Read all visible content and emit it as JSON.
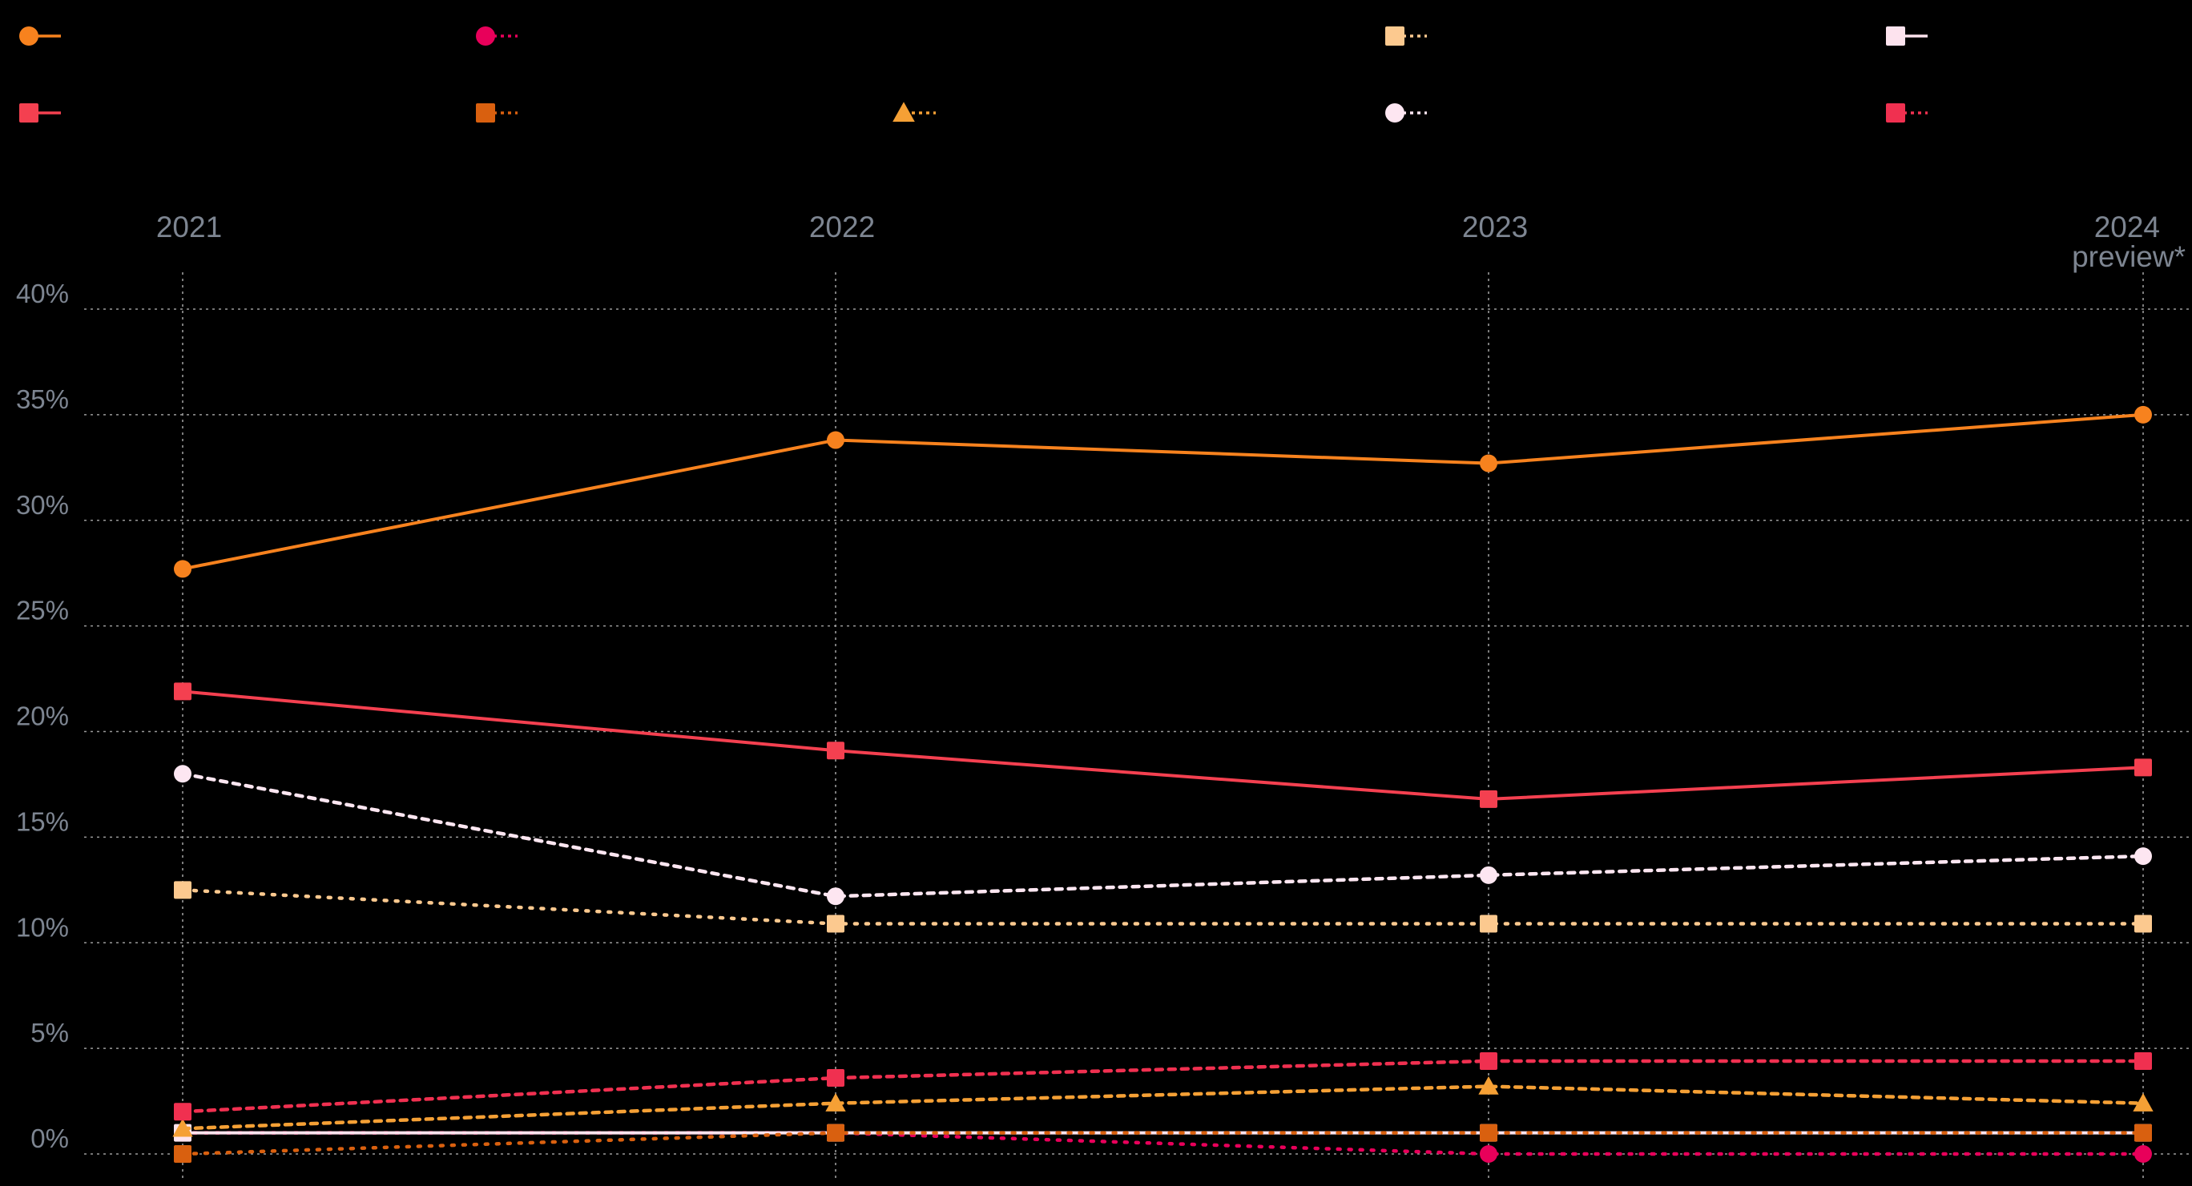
{
  "chart_data": {
    "type": "line",
    "title": "",
    "xlabel": "",
    "ylabel": "",
    "grid": true,
    "legend_position": "top",
    "x": [
      "2021",
      "2022",
      "2023",
      "2024"
    ],
    "x_sublabels": [
      "",
      "",
      "",
      "preview*"
    ],
    "y_ticks": [
      "0%",
      "5%",
      "10%",
      "15%",
      "20%",
      "25%",
      "30%",
      "35%",
      "40%"
    ],
    "ylim": [
      0,
      40
    ],
    "series": [
      {
        "color": "#f7821e",
        "marker": "circle",
        "line": "solid",
        "values": [
          27.7,
          33.8,
          32.7,
          35.0
        ]
      },
      {
        "color": "#e8005a",
        "marker": "circle",
        "line": "dotted",
        "values": [
          1.0,
          1.0,
          0.0,
          0.0
        ]
      },
      {
        "color": "#fcc98f",
        "marker": "square",
        "line": "dotted",
        "values": [
          12.5,
          10.9,
          10.9,
          10.9
        ]
      },
      {
        "color": "#fde3ee",
        "marker": "square",
        "line": "solid",
        "values": [
          1.0,
          1.0,
          1.0,
          1.0
        ]
      },
      {
        "color": "#f44050",
        "marker": "square",
        "line": "solid",
        "values": [
          21.9,
          19.1,
          16.8,
          18.3
        ]
      },
      {
        "color": "#d9600f",
        "marker": "square",
        "line": "dotted",
        "values": [
          0.0,
          1.0,
          1.0,
          1.0
        ]
      },
      {
        "color": "#f5a035",
        "marker": "triangle",
        "line": "dashed",
        "values": [
          1.2,
          2.4,
          3.2,
          2.4
        ]
      },
      {
        "color": "#fde6f1",
        "marker": "circle",
        "line": "dashed",
        "values": [
          18.0,
          12.2,
          13.2,
          14.1
        ]
      },
      {
        "color": "#f03050",
        "marker": "square",
        "line": "dashed",
        "values": [
          2.0,
          3.6,
          4.4,
          4.4
        ]
      }
    ]
  }
}
